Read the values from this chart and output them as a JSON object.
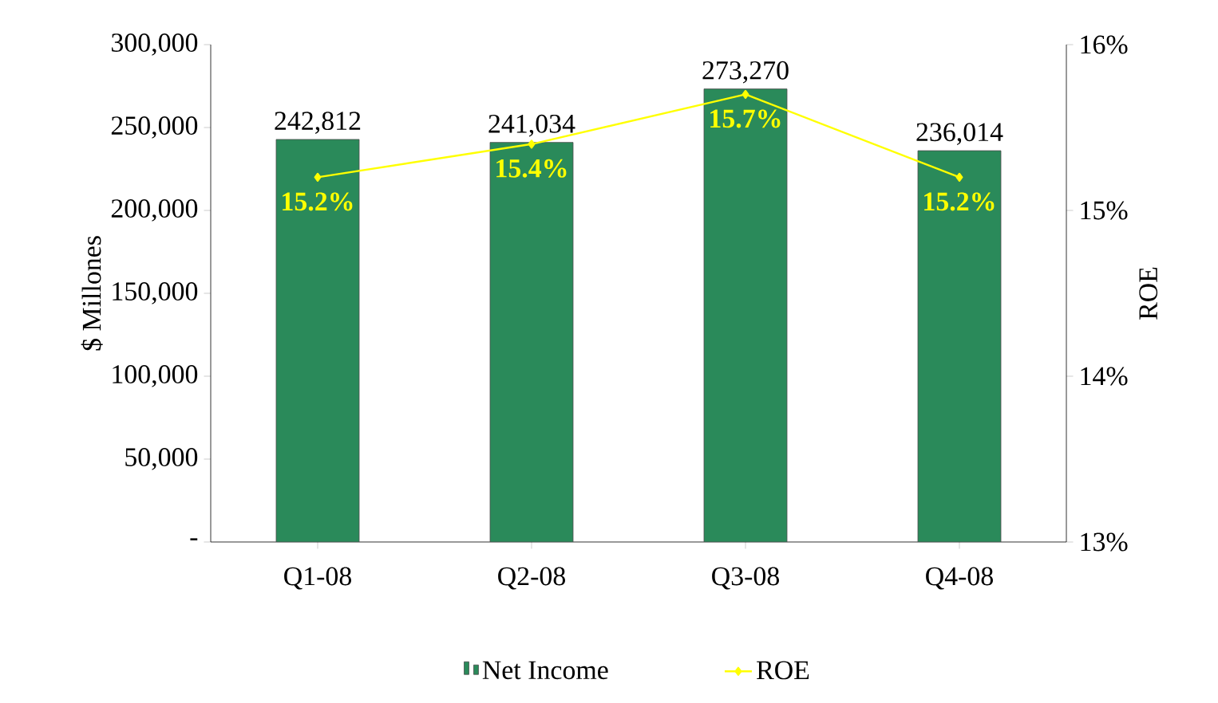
{
  "chart_data": {
    "type": "bar",
    "categories": [
      "Q1-08",
      "Q2-08",
      "Q3-08",
      "Q4-08"
    ],
    "series": [
      {
        "name": "Net Income",
        "color": "#2a8a5a",
        "values": [
          242812,
          241034,
          273270,
          236014
        ],
        "value_labels": [
          "242,812",
          "241,034",
          "273,270",
          "236,014"
        ]
      },
      {
        "name": "ROE",
        "type": "line",
        "axis": "y2",
        "color": "#ffff00",
        "values": [
          15.2,
          15.4,
          15.7,
          15.2
        ],
        "value_labels": [
          "15.2%",
          "15.4%",
          "15.7%",
          "15.2%"
        ]
      }
    ],
    "ylabel": "$ Millones",
    "y2label": "ROE",
    "ylim": [
      0,
      300000
    ],
    "yticks": [
      {
        "value": 0,
        "label": "-"
      },
      {
        "value": 50000,
        "label": "50,000"
      },
      {
        "value": 100000,
        "label": "100,000"
      },
      {
        "value": 150000,
        "label": "150,000"
      },
      {
        "value": 200000,
        "label": "200,000"
      },
      {
        "value": 250000,
        "label": "250,000"
      },
      {
        "value": 300000,
        "label": "300,000"
      }
    ],
    "y2lim": [
      13,
      16
    ],
    "y2ticks": [
      {
        "value": 13,
        "label": "13%"
      },
      {
        "value": 14,
        "label": "14%"
      },
      {
        "value": 15,
        "label": "15%"
      },
      {
        "value": 16,
        "label": "16%"
      }
    ],
    "marker": "diamond",
    "legend": "bottom",
    "grid": false
  }
}
